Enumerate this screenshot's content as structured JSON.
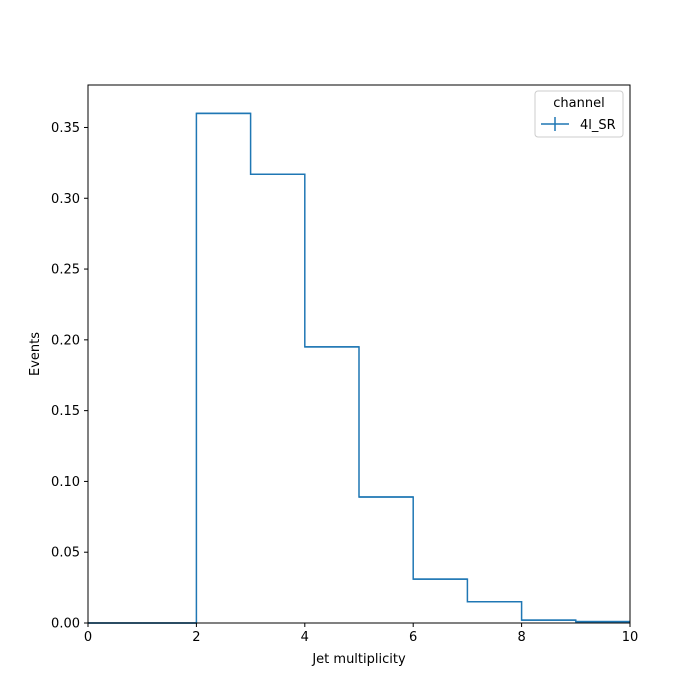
{
  "chart_data": {
    "type": "histogram-step",
    "xlabel": "Jet multiplicity",
    "ylabel": "Events",
    "xlim": [
      0,
      10
    ],
    "ylim": [
      0,
      0.38
    ],
    "xticks": [
      0,
      2,
      4,
      6,
      8,
      10
    ],
    "yticks": [
      "0.00",
      "0.05",
      "0.10",
      "0.15",
      "0.20",
      "0.25",
      "0.30",
      "0.35"
    ],
    "bin_edges": [
      0,
      1,
      2,
      3,
      4,
      5,
      6,
      7,
      8,
      9,
      10
    ],
    "series": [
      {
        "name": "4l_SR",
        "color": "#1f77b4",
        "values": [
          0.0,
          0.0,
          0.36,
          0.317,
          0.195,
          0.089,
          0.031,
          0.015,
          0.002,
          0.001
        ]
      }
    ],
    "legend": {
      "title": "channel",
      "placement": "top-right"
    },
    "grid": false
  }
}
